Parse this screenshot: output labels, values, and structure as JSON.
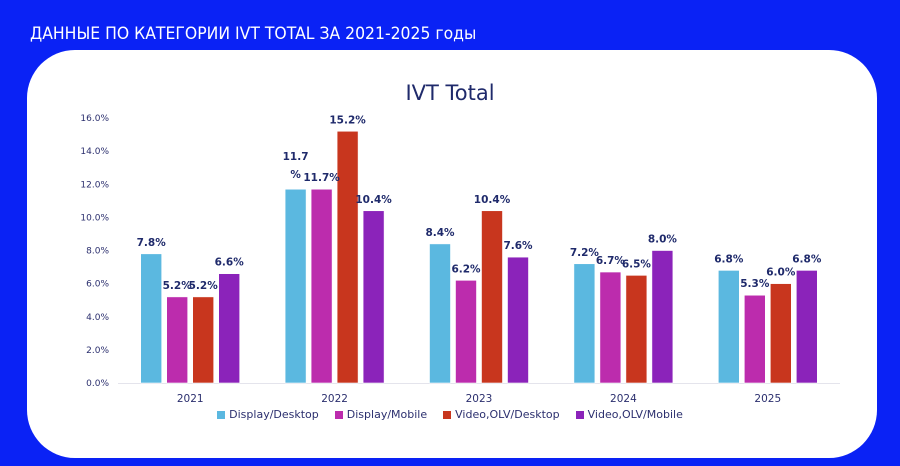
{
  "page": {
    "heading": "ДАННЫЕ ПО КАТЕГОРИИ IVT TOTAL ЗА 2021-2025 годы",
    "background_color": "#0a22f5"
  },
  "chart_data": {
    "type": "bar",
    "title": "IVT Total",
    "xlabel": "",
    "ylabel": "",
    "categories": [
      "2021",
      "2022",
      "2023",
      "2024",
      "2025"
    ],
    "ylim": [
      0,
      16
    ],
    "yticks": [
      0,
      2,
      4,
      6,
      8,
      10,
      12,
      14,
      16
    ],
    "ytick_labels": [
      "0.0%",
      "2.0%",
      "4.0%",
      "6.0%",
      "8.0%",
      "10.0%",
      "12.0%",
      "14.0%",
      "16.0%"
    ],
    "grid": false,
    "legend_position": "bottom",
    "series": [
      {
        "name": "Display/Desktop",
        "color": "#5bb8e0",
        "values": [
          7.8,
          11.7,
          8.4,
          7.2,
          6.8
        ],
        "labels": [
          "7.8%",
          "11.7 %",
          "8.4%",
          "7.2%",
          "6.8%"
        ]
      },
      {
        "name": "Display/Mobile",
        "color": "#bc2cad",
        "values": [
          5.2,
          11.7,
          6.2,
          6.7,
          5.3
        ],
        "labels": [
          "5.2%",
          "11.7%",
          "6.2%",
          "6.7%",
          "5.3%"
        ]
      },
      {
        "name": "Video,OLV/Desktop",
        "color": "#c8361e",
        "values": [
          5.2,
          15.2,
          10.4,
          6.5,
          6.0
        ],
        "labels": [
          "5.2%",
          "15.2%",
          "10.4%",
          "6.5%",
          "6.0%"
        ]
      },
      {
        "name": "Video,OLV/Mobile",
        "color": "#8b23ba",
        "values": [
          6.6,
          10.4,
          7.6,
          8.0,
          6.8
        ],
        "labels": [
          "6.6%",
          "10.4%",
          "7.6%",
          "8.0%",
          "6.8%"
        ]
      }
    ]
  }
}
